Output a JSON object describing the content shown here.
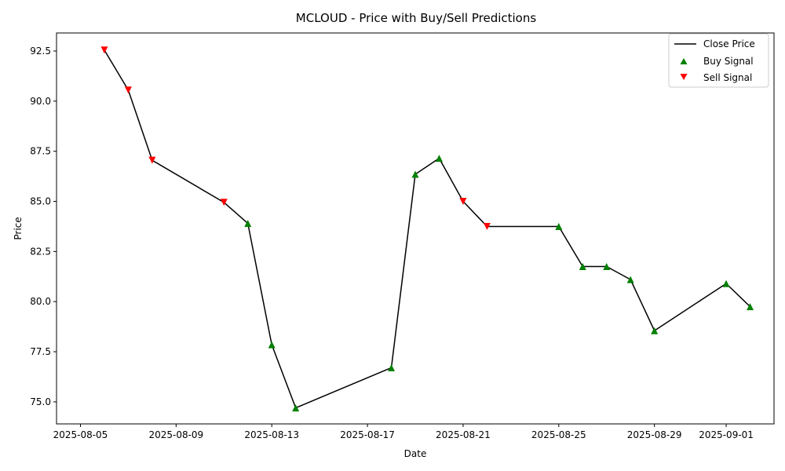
{
  "chart_data": {
    "type": "line",
    "title": "MCLOUD - Price with Buy/Sell Predictions",
    "xlabel": "Date",
    "ylabel": "Price",
    "x_type": "date",
    "xlim": [
      "2025-08-04",
      "2025-09-03"
    ],
    "ylim": [
      73.9,
      93.4
    ],
    "x_ticks": [
      "2025-08-05",
      "2025-08-09",
      "2025-08-13",
      "2025-08-17",
      "2025-08-21",
      "2025-08-25",
      "2025-08-29",
      "2025-09-01"
    ],
    "y_ticks": [
      75.0,
      77.5,
      80.0,
      82.5,
      85.0,
      87.5,
      90.0,
      92.5
    ],
    "y_tick_labels": [
      "75.0",
      "77.5",
      "80.0",
      "82.5",
      "85.0",
      "87.5",
      "90.0",
      "92.5"
    ],
    "grid": false,
    "legend_position": "top-right",
    "legend": [
      "Close Price",
      "Buy Signal",
      "Sell Signal"
    ],
    "series": [
      {
        "name": "Close Price",
        "color": "#000000",
        "points": [
          {
            "date": "2025-08-06",
            "price": 92.55
          },
          {
            "date": "2025-08-07",
            "price": 90.55
          },
          {
            "date": "2025-08-08",
            "price": 87.05
          },
          {
            "date": "2025-08-11",
            "price": 84.95
          },
          {
            "date": "2025-08-12",
            "price": 83.9
          },
          {
            "date": "2025-08-13",
            "price": 77.85
          },
          {
            "date": "2025-08-14",
            "price": 74.7
          },
          {
            "date": "2025-08-18",
            "price": 76.7
          },
          {
            "date": "2025-08-19",
            "price": 86.35
          },
          {
            "date": "2025-08-20",
            "price": 87.15
          },
          {
            "date": "2025-08-21",
            "price": 85.0
          },
          {
            "date": "2025-08-22",
            "price": 83.75
          },
          {
            "date": "2025-08-25",
            "price": 83.75
          },
          {
            "date": "2025-08-26",
            "price": 81.75
          },
          {
            "date": "2025-08-27",
            "price": 81.75
          },
          {
            "date": "2025-08-28",
            "price": 81.1
          },
          {
            "date": "2025-08-29",
            "price": 78.55
          },
          {
            "date": "2025-09-01",
            "price": 80.9
          },
          {
            "date": "2025-09-02",
            "price": 79.75
          }
        ]
      },
      {
        "name": "Buy Signal",
        "color": "#008000",
        "marker": "triangle-up",
        "points": [
          {
            "date": "2025-08-12",
            "price": 83.9
          },
          {
            "date": "2025-08-13",
            "price": 77.85
          },
          {
            "date": "2025-08-14",
            "price": 74.7
          },
          {
            "date": "2025-08-18",
            "price": 76.7
          },
          {
            "date": "2025-08-19",
            "price": 86.35
          },
          {
            "date": "2025-08-20",
            "price": 87.15
          },
          {
            "date": "2025-08-25",
            "price": 83.75
          },
          {
            "date": "2025-08-26",
            "price": 81.75
          },
          {
            "date": "2025-08-27",
            "price": 81.75
          },
          {
            "date": "2025-08-28",
            "price": 81.1
          },
          {
            "date": "2025-08-29",
            "price": 78.55
          },
          {
            "date": "2025-09-01",
            "price": 80.9
          },
          {
            "date": "2025-09-02",
            "price": 79.75
          }
        ]
      },
      {
        "name": "Sell Signal",
        "color": "#ff0000",
        "marker": "triangle-down",
        "points": [
          {
            "date": "2025-08-06",
            "price": 92.55
          },
          {
            "date": "2025-08-07",
            "price": 90.55
          },
          {
            "date": "2025-08-08",
            "price": 87.05
          },
          {
            "date": "2025-08-11",
            "price": 84.95
          },
          {
            "date": "2025-08-21",
            "price": 85.0
          },
          {
            "date": "2025-08-22",
            "price": 83.75
          }
        ]
      }
    ]
  }
}
